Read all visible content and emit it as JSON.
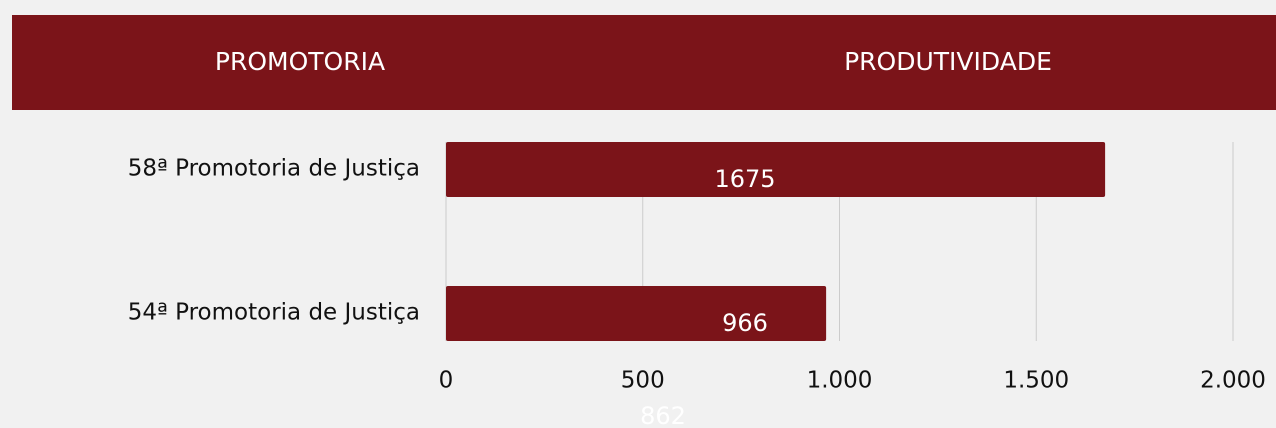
{
  "header": {
    "columns": [
      "PROMOTORIA",
      "PRODUTIVIDADE"
    ]
  },
  "chart_data": {
    "type": "bar",
    "orientation": "horizontal",
    "categories": [
      "58ª Promotoria de Justiça",
      "54ª Promotoria de Justiça"
    ],
    "values": [
      1675,
      966
    ],
    "color": "#7b1419",
    "xlim": [
      0,
      2000
    ],
    "xticks": [
      0,
      500,
      {
        "value": 1000,
        "label": "1.000"
      },
      {
        "value": 1500,
        "label": "1.500"
      },
      {
        "value": 2000,
        "label": "2.000"
      }
    ],
    "grid": true,
    "annotations": [
      "862"
    ]
  }
}
